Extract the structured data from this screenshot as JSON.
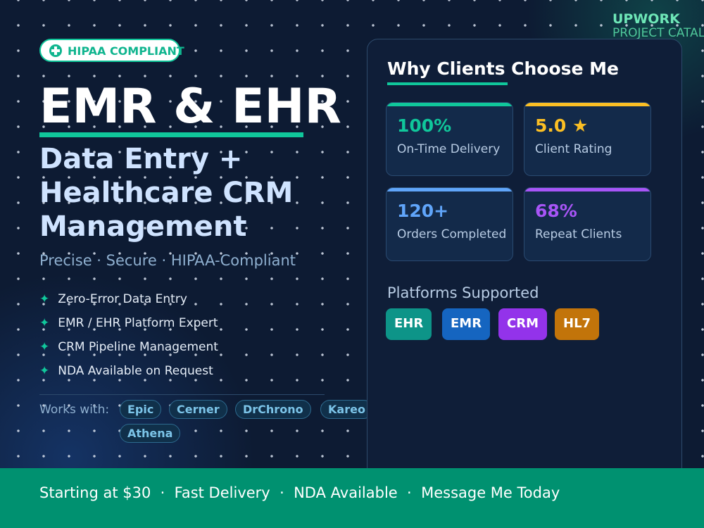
{
  "header": {
    "brand": "UPWORK",
    "subbrand": "PROJECT CATALOG",
    "badge": "HIPAA COMPLIANT"
  },
  "hero": {
    "title": "EMR & EHR",
    "subtitle_lines": [
      "Data Entry +",
      "Healthcare CRM",
      "Management"
    ],
    "tagline": "Precise · Secure · HIPAA-Compliant"
  },
  "features": [
    "Zero-Error Data Entry",
    "EMR / EHR Platform Expert",
    "CRM Pipeline Management",
    "NDA Available on Request"
  ],
  "works_with": {
    "label": "Works with:",
    "items": [
      "Epic",
      "Cerner",
      "DrChrono",
      "Kareo",
      "Athena"
    ]
  },
  "panel": {
    "title": "Why Clients Choose Me",
    "stats": [
      {
        "value": "100%",
        "label": "On-Time Delivery"
      },
      {
        "value": "5.0 ★",
        "label": "Client Rating"
      },
      {
        "value": "120+",
        "label": "Orders Completed"
      },
      {
        "value": "68%",
        "label": "Repeat Clients"
      }
    ],
    "platforms_title": "Platforms Supported",
    "platforms": [
      "EHR",
      "EMR",
      "CRM",
      "HL7"
    ]
  },
  "footer": "Starting at $30  ·  Fast Delivery  ·  NDA Available  ·  Message Me Today"
}
